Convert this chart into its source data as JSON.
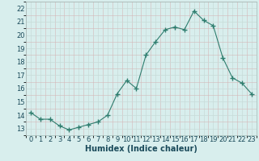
{
  "x": [
    0,
    1,
    2,
    3,
    4,
    5,
    6,
    7,
    8,
    9,
    10,
    11,
    12,
    13,
    14,
    15,
    16,
    17,
    18,
    19,
    20,
    21,
    22,
    23
  ],
  "y": [
    14.2,
    13.7,
    13.7,
    13.2,
    12.9,
    13.1,
    13.3,
    13.5,
    14.0,
    15.6,
    16.6,
    16.0,
    18.5,
    19.5,
    20.4,
    20.6,
    20.4,
    21.8,
    21.1,
    20.7,
    18.3,
    16.8,
    16.4,
    15.6
  ],
  "line_color": "#2e7d6e",
  "marker": "+",
  "marker_size": 4,
  "bg_color": "#d8eeed",
  "grid_color_major": "#c8dbd8",
  "grid_color_minor": "#e0eeec",
  "title": "",
  "xlabel": "Humidex (Indice chaleur)",
  "ylabel": "",
  "ylim": [
    12.5,
    22.5
  ],
  "xlim": [
    -0.5,
    23.5
  ],
  "yticks": [
    13,
    14,
    15,
    16,
    17,
    18,
    19,
    20,
    21,
    22
  ],
  "xticks": [
    0,
    1,
    2,
    3,
    4,
    5,
    6,
    7,
    8,
    9,
    10,
    11,
    12,
    13,
    14,
    15,
    16,
    17,
    18,
    19,
    20,
    21,
    22,
    23
  ],
  "label_color": "#1a4a5a",
  "tick_color": "#1a4a5a",
  "xlabel_fontsize": 7,
  "tick_fontsize": 6,
  "grid_minor_color": "#dce8e6",
  "spine_color": "#a0b8b4"
}
